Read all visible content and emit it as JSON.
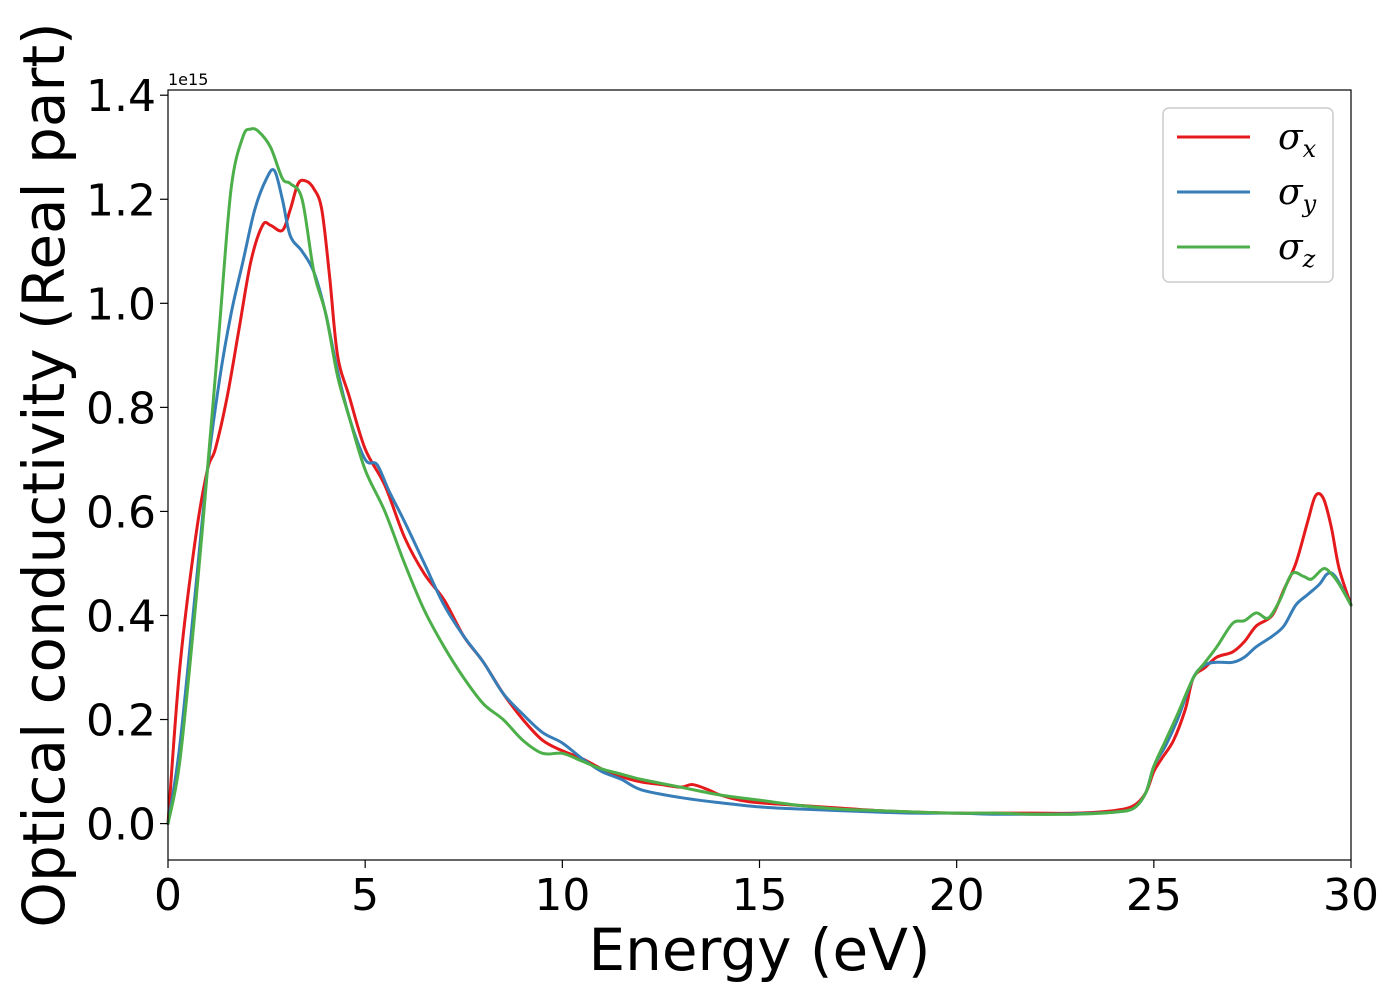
{
  "chart_data": {
    "type": "line",
    "xlabel": "Energy (eV)",
    "ylabel": "Optical conductivity (Real part)",
    "y_offset_text": "1e15",
    "xlim": [
      0,
      30
    ],
    "ylim": [
      -0.07,
      1.41
    ],
    "x_ticks": [
      0,
      5,
      10,
      15,
      20,
      25,
      30
    ],
    "y_ticks": [
      0.0,
      0.2,
      0.4,
      0.6,
      0.8,
      1.0,
      1.2,
      1.4
    ],
    "x_tick_labels": [
      "0",
      "5",
      "10",
      "15",
      "20",
      "25",
      "30"
    ],
    "y_tick_labels": [
      "0.0",
      "0.2",
      "0.4",
      "0.6",
      "0.8",
      "1.0",
      "1.2",
      "1.4"
    ],
    "grid": false,
    "legend_position": "top-right",
    "series": [
      {
        "name": "σx",
        "symbol": "σ",
        "subscript": "x",
        "color": "#e41a1c",
        "x": [
          0,
          0.3,
          0.7,
          1.0,
          1.2,
          1.5,
          1.8,
          2.1,
          2.4,
          2.6,
          2.9,
          3.1,
          3.3,
          3.5,
          3.7,
          3.9,
          4.1,
          4.3,
          4.6,
          5.0,
          5.5,
          6.0,
          6.5,
          7.0,
          7.5,
          8.0,
          8.5,
          9.0,
          9.5,
          10.0,
          10.5,
          11.0,
          11.5,
          12.0,
          12.5,
          13.0,
          13.3,
          13.7,
          14.0,
          14.5,
          15.0,
          16.0,
          17.0,
          18.0,
          19.0,
          20.0,
          21.0,
          22.0,
          23.0,
          24.0,
          24.5,
          24.8,
          25.0,
          25.2,
          25.5,
          25.8,
          26.0,
          26.3,
          26.6,
          27.0,
          27.3,
          27.6,
          28.0,
          28.3,
          28.6,
          28.9,
          29.1,
          29.3,
          29.5,
          29.7,
          30.0
        ],
        "y": [
          0.0,
          0.3,
          0.55,
          0.68,
          0.72,
          0.82,
          0.95,
          1.08,
          1.15,
          1.15,
          1.14,
          1.18,
          1.23,
          1.235,
          1.22,
          1.18,
          1.05,
          0.9,
          0.82,
          0.72,
          0.65,
          0.55,
          0.48,
          0.43,
          0.36,
          0.31,
          0.25,
          0.2,
          0.16,
          0.14,
          0.125,
          0.105,
          0.09,
          0.08,
          0.075,
          0.07,
          0.075,
          0.065,
          0.055,
          0.045,
          0.04,
          0.035,
          0.03,
          0.025,
          0.022,
          0.02,
          0.02,
          0.02,
          0.02,
          0.025,
          0.035,
          0.06,
          0.1,
          0.125,
          0.16,
          0.22,
          0.28,
          0.3,
          0.32,
          0.33,
          0.35,
          0.38,
          0.4,
          0.45,
          0.5,
          0.58,
          0.63,
          0.625,
          0.57,
          0.49,
          0.42
        ]
      },
      {
        "name": "σy",
        "symbol": "σ",
        "subscript": "y",
        "color": "#377eb8",
        "x": [
          0,
          0.3,
          0.7,
          1.0,
          1.3,
          1.6,
          1.9,
          2.2,
          2.5,
          2.7,
          2.9,
          3.1,
          3.4,
          3.7,
          4.0,
          4.3,
          4.6,
          5.0,
          5.3,
          5.6,
          6.0,
          6.5,
          7.0,
          7.5,
          8.0,
          8.5,
          9.0,
          9.5,
          10.0,
          10.5,
          11.0,
          11.5,
          12.0,
          13.0,
          14.0,
          15.0,
          16.0,
          17.0,
          18.0,
          19.0,
          20.0,
          21.0,
          22.0,
          23.0,
          24.0,
          24.5,
          24.8,
          25.0,
          25.3,
          25.6,
          26.0,
          26.3,
          26.6,
          27.0,
          27.3,
          27.6,
          28.0,
          28.3,
          28.6,
          28.9,
          29.2,
          29.4,
          29.6,
          30.0
        ],
        "y": [
          0.0,
          0.15,
          0.45,
          0.68,
          0.85,
          0.98,
          1.08,
          1.18,
          1.24,
          1.255,
          1.2,
          1.13,
          1.1,
          1.06,
          0.98,
          0.87,
          0.78,
          0.7,
          0.69,
          0.64,
          0.58,
          0.5,
          0.42,
          0.36,
          0.31,
          0.25,
          0.21,
          0.175,
          0.155,
          0.125,
          0.1,
          0.085,
          0.065,
          0.05,
          0.04,
          0.032,
          0.028,
          0.025,
          0.022,
          0.02,
          0.02,
          0.018,
          0.018,
          0.019,
          0.022,
          0.03,
          0.06,
          0.11,
          0.15,
          0.2,
          0.28,
          0.305,
          0.31,
          0.31,
          0.32,
          0.34,
          0.36,
          0.38,
          0.42,
          0.44,
          0.46,
          0.48,
          0.475,
          0.42
        ]
      },
      {
        "name": "σz",
        "symbol": "σ",
        "subscript": "z",
        "color": "#4daf4a",
        "x": [
          0,
          0.3,
          0.7,
          1.0,
          1.3,
          1.6,
          1.9,
          2.1,
          2.3,
          2.6,
          2.9,
          3.1,
          3.4,
          3.7,
          4.0,
          4.3,
          4.6,
          5.0,
          5.5,
          6.0,
          6.5,
          7.0,
          7.5,
          8.0,
          8.5,
          9.0,
          9.5,
          10.0,
          10.5,
          11.0,
          11.5,
          12.0,
          13.0,
          14.0,
          15.0,
          16.0,
          17.0,
          18.0,
          19.0,
          20.0,
          21.0,
          22.0,
          23.0,
          24.0,
          24.5,
          24.8,
          25.0,
          25.3,
          25.6,
          26.0,
          26.3,
          26.6,
          27.0,
          27.3,
          27.6,
          27.9,
          28.2,
          28.5,
          28.8,
          29.0,
          29.3,
          29.5,
          29.7,
          30.0
        ],
        "y": [
          0.0,
          0.12,
          0.42,
          0.68,
          0.95,
          1.22,
          1.32,
          1.335,
          1.33,
          1.3,
          1.24,
          1.23,
          1.2,
          1.06,
          0.98,
          0.86,
          0.78,
          0.68,
          0.6,
          0.5,
          0.41,
          0.34,
          0.28,
          0.23,
          0.2,
          0.16,
          0.135,
          0.135,
          0.12,
          0.105,
          0.095,
          0.085,
          0.07,
          0.055,
          0.045,
          0.035,
          0.028,
          0.025,
          0.022,
          0.02,
          0.02,
          0.018,
          0.018,
          0.022,
          0.03,
          0.06,
          0.11,
          0.16,
          0.21,
          0.28,
          0.31,
          0.34,
          0.385,
          0.39,
          0.405,
          0.395,
          0.43,
          0.48,
          0.475,
          0.47,
          0.49,
          0.48,
          0.46,
          0.42
        ]
      }
    ]
  }
}
